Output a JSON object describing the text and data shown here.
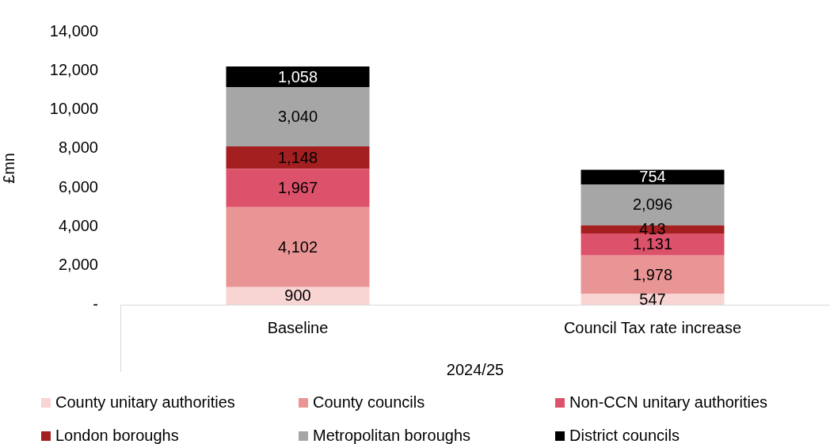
{
  "chart_data": {
    "type": "bar",
    "stacked": true,
    "categories": [
      "Baseline",
      "Council Tax rate increase"
    ],
    "xlabel": "2024/25",
    "ylabel": "£mn",
    "ylim": [
      0,
      14000
    ],
    "yticks": [
      {
        "value": 0,
        "label": "-"
      },
      {
        "value": 2000,
        "label": "2,000"
      },
      {
        "value": 4000,
        "label": "4,000"
      },
      {
        "value": 6000,
        "label": "6,000"
      },
      {
        "value": 8000,
        "label": "8,000"
      },
      {
        "value": 10000,
        "label": "10,000"
      },
      {
        "value": 12000,
        "label": "12,000"
      },
      {
        "value": 14000,
        "label": "14,000"
      }
    ],
    "grid": false,
    "legend": "bottom",
    "series": [
      {
        "name": "County unitary authorities",
        "color": "#f8d4d3",
        "values": [
          900,
          547
        ],
        "value_labels": [
          "900",
          "547"
        ]
      },
      {
        "name": "County councils",
        "color": "#ea9595",
        "values": [
          4102,
          1978
        ],
        "value_labels": [
          "4,102",
          "1,978"
        ]
      },
      {
        "name": "Non-CCN unitary authorities",
        "color": "#dc526b",
        "values": [
          1967,
          1131
        ],
        "value_labels": [
          "1,967",
          "1,131"
        ]
      },
      {
        "name": "London boroughs",
        "color": "#a31f20",
        "values": [
          1148,
          413
        ],
        "value_labels": [
          "1,148",
          "413"
        ]
      },
      {
        "name": "Metropolitan boroughs",
        "color": "#a6a6a6",
        "values": [
          3040,
          2096
        ],
        "value_labels": [
          "3,040",
          "2,096"
        ]
      },
      {
        "name": "District councils",
        "color": "#000000",
        "values": [
          1058,
          754
        ],
        "value_labels": [
          "1,058",
          "754"
        ]
      }
    ]
  }
}
